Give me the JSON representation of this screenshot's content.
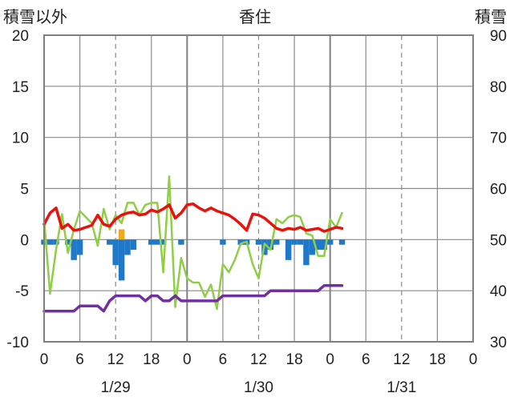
{
  "chart_data": {
    "type": "line",
    "title": "香住",
    "left_axis_label": "積雪以外",
    "right_axis_label": "積雪",
    "left_ylim": [
      -10,
      20
    ],
    "left_yticks": [
      "20",
      "15",
      "10",
      "5",
      "0",
      "-5",
      "-10"
    ],
    "right_ylim": [
      30,
      90
    ],
    "right_yticks": [
      "90",
      "80",
      "70",
      "60",
      "50",
      "40",
      "30"
    ],
    "x_hours_range": [
      0,
      72
    ],
    "x_tick_labels": [
      "0",
      "6",
      "12",
      "18",
      "0",
      "6",
      "12",
      "18",
      "0",
      "6",
      "12",
      "18",
      "0"
    ],
    "date_labels": [
      "1/29",
      "1/30",
      "1/31"
    ],
    "grid": true,
    "colors": {
      "temperature": "#e8120c",
      "wind": "#8fce45",
      "snow_depth": "#7030a0",
      "precip_negative": "#1f78c8",
      "precip_positive": "#f0a81c",
      "frame": "#7f7f7f",
      "grid": "#8a8a8a"
    },
    "series": [
      {
        "key": "temperature",
        "axis": "left",
        "x": [
          0,
          1,
          2,
          3,
          4,
          5,
          6,
          7,
          8,
          9,
          10,
          11,
          12,
          13,
          14,
          15,
          16,
          17,
          18,
          19,
          20,
          21,
          22,
          23,
          24,
          25,
          26,
          27,
          28,
          29,
          30,
          31,
          32,
          33,
          34,
          35,
          36,
          37,
          38,
          39,
          40,
          41,
          42,
          43,
          44,
          45,
          46,
          47,
          48,
          49,
          50
        ],
        "values": [
          1.5,
          2.6,
          3.1,
          1.1,
          1.5,
          0.9,
          1.0,
          1.2,
          1.4,
          2.4,
          1.5,
          1.3,
          2.0,
          2.4,
          2.6,
          2.7,
          2.4,
          2.5,
          2.9,
          2.7,
          3.0,
          3.4,
          2.1,
          2.6,
          3.4,
          3.5,
          3.1,
          2.8,
          3.1,
          2.8,
          2.6,
          2.4,
          2.0,
          1.5,
          0.9,
          2.5,
          2.4,
          2.1,
          1.6,
          1.1,
          0.9,
          1.1,
          1.0,
          1.2,
          0.9,
          1.0,
          1.1,
          0.8,
          1.0,
          1.2,
          1.1
        ]
      },
      {
        "key": "wind",
        "axis": "left",
        "x": [
          0,
          1,
          2,
          3,
          4,
          5,
          6,
          7,
          8,
          9,
          10,
          11,
          12,
          13,
          14,
          15,
          16,
          17,
          18,
          19,
          20,
          21,
          22,
          23,
          24,
          25,
          26,
          27,
          28,
          29,
          30,
          31,
          32,
          33,
          34,
          35,
          36,
          37,
          38,
          39,
          40,
          41,
          42,
          43,
          44,
          45,
          46,
          47,
          48,
          49,
          50
        ],
        "values": [
          2.0,
          -5.3,
          -1.0,
          2.5,
          -1.3,
          1.0,
          2.8,
          2.2,
          1.6,
          -0.6,
          3.0,
          1.0,
          2.4,
          1.6,
          3.6,
          3.6,
          2.4,
          3.4,
          3.6,
          3.6,
          -3.2,
          6.2,
          -6.6,
          -1.8,
          -3.8,
          -4.2,
          -4.2,
          -5.6,
          -4.4,
          -6.8,
          -2.4,
          -3.2,
          -2.0,
          -0.4,
          -0.2,
          -2.4,
          -3.8,
          -0.4,
          -1.0,
          2.0,
          1.6,
          2.2,
          2.4,
          2.2,
          0.6,
          0.4,
          -1.6,
          -1.6,
          2.0,
          1.2,
          2.6
        ]
      },
      {
        "key": "snow_depth",
        "axis": "right",
        "x": [
          0,
          1,
          2,
          3,
          4,
          5,
          6,
          7,
          8,
          9,
          10,
          11,
          12,
          13,
          14,
          15,
          16,
          17,
          18,
          19,
          20,
          21,
          22,
          23,
          24,
          25,
          26,
          27,
          28,
          29,
          30,
          31,
          32,
          33,
          34,
          35,
          36,
          37,
          38,
          39,
          40,
          41,
          42,
          43,
          44,
          45,
          46,
          47,
          48,
          49,
          50
        ],
        "values": [
          36,
          36,
          36,
          36,
          36,
          36,
          37,
          37,
          37,
          37,
          36,
          38,
          39,
          39,
          39,
          39,
          39,
          38,
          39,
          39,
          38,
          38,
          39,
          38,
          38,
          38,
          38,
          38,
          38,
          38,
          39,
          39,
          39,
          39,
          39,
          39,
          39,
          39,
          40,
          40,
          40,
          40,
          40,
          40,
          40,
          40,
          40,
          41,
          41,
          41,
          41
        ]
      }
    ],
    "precip_bars": {
      "x": [
        0,
        1,
        2,
        3,
        4,
        5,
        6,
        7,
        8,
        9,
        10,
        11,
        12,
        13,
        14,
        15,
        16,
        17,
        18,
        19,
        20,
        21,
        22,
        23,
        24,
        25,
        26,
        27,
        28,
        29,
        30,
        31,
        32,
        33,
        34,
        35,
        36,
        37,
        38,
        39,
        40,
        41,
        42,
        43,
        44,
        45,
        46,
        47,
        48,
        49,
        50
      ],
      "values": [
        -0.5,
        -0.5,
        -0.5,
        0,
        -0.5,
        -2.0,
        -1.5,
        0,
        0,
        0,
        0,
        -0.5,
        -2.5,
        -4.0,
        -1.5,
        -1.0,
        0,
        0,
        -0.5,
        -0.5,
        -0.5,
        0,
        0,
        -0.5,
        0,
        0,
        0,
        0,
        0,
        0,
        -0.5,
        0,
        0,
        -0.5,
        -0.5,
        0,
        -0.5,
        -1.5,
        -1.0,
        -0.5,
        0,
        -2.0,
        -0.5,
        -0.5,
        -2.5,
        -1.5,
        -1.0,
        -1.0,
        -0.5,
        0,
        -0.5
      ],
      "positive_x": [
        13
      ],
      "positive_values": [
        1.0
      ]
    }
  }
}
